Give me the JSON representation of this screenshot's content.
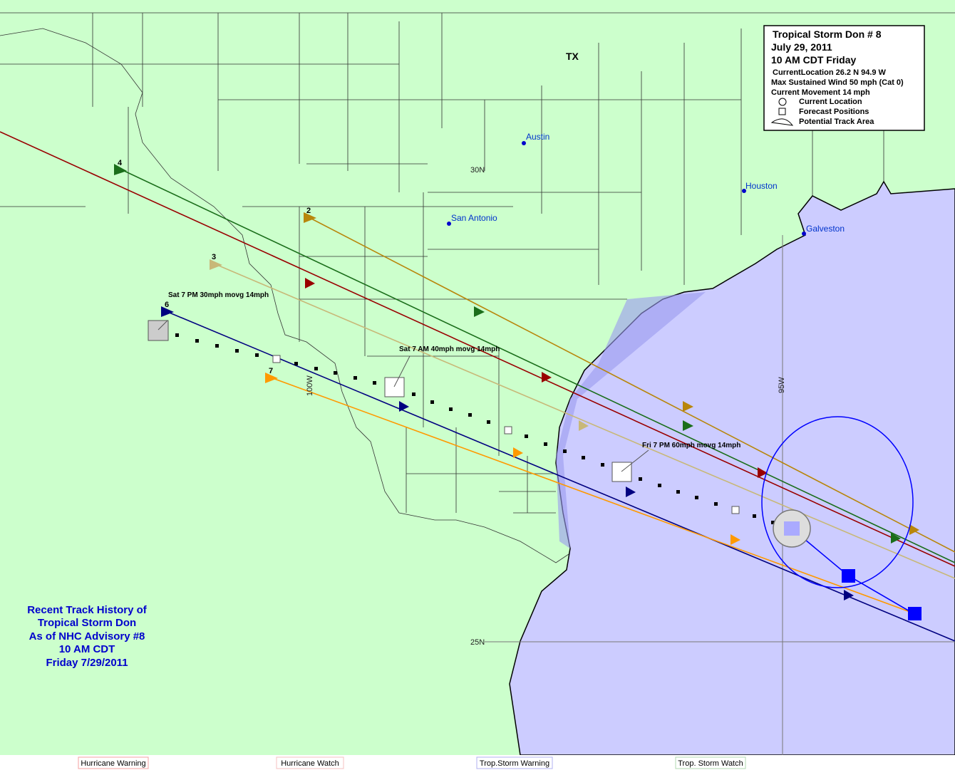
{
  "legend_box": {
    "title": "Tropical Storm Don # 8",
    "date": "July 29, 2011",
    "time": "10 AM CDT Friday",
    "lines": [
      "CurrentLocation 26.2 N  94.9 W",
      "Max Sustained Wind 50 mph (Cat 0)",
      "Current Movement 14 mph"
    ],
    "keys": [
      "Current Location",
      "Forecast Positions",
      "Potential Track Area"
    ]
  },
  "map_labels": {
    "state": "TX",
    "cities": [
      "Austin",
      "San Antonio",
      "Houston",
      "Galveston"
    ],
    "grid": [
      "30N",
      "25N",
      "100W",
      "95W"
    ]
  },
  "tracks": {
    "numbers": [
      "4",
      "2",
      "3",
      "6",
      "7"
    ],
    "annotations": [
      "Sat 7 PM 30mph movg 14mph",
      "Sat 7 AM 40mph movg 14mph",
      "Fri 7 PM 60mph movg 14mph"
    ]
  },
  "history_note": [
    "Recent Track History of",
    "Tropical Storm Don",
    "As of NHC Advisory #8",
    "10 AM CDT",
    "Friday 7/29/2011"
  ],
  "footer": [
    "Hurricane Warning",
    "Hurricane  Watch",
    "Trop.Storm Warning",
    "Trop. Storm Watch"
  ]
}
